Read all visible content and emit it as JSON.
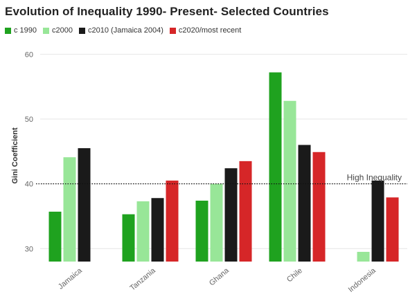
{
  "chart_data": {
    "type": "bar",
    "title": "Evolution of Inequality 1990- Present- Selected Countries",
    "ylabel": "Gini Coefficient",
    "xlabel": "",
    "categories": [
      "Jamaica",
      "Tanzania",
      "Ghana",
      "Chile",
      "Indonesia"
    ],
    "series": [
      {
        "name": "c 1990",
        "color": "#1fa21f",
        "values": [
          35.7,
          35.3,
          37.4,
          57.2,
          null
        ]
      },
      {
        "name": "c2000",
        "color": "#98e698",
        "values": [
          44.1,
          37.3,
          40.0,
          52.8,
          29.5
        ]
      },
      {
        "name": "c2010 (Jamaica 2004)",
        "color": "#1a1a1a",
        "values": [
          45.5,
          37.8,
          42.4,
          46.0,
          40.5
        ]
      },
      {
        "name": "c2020/most recent",
        "color": "#d62628",
        "values": [
          null,
          40.5,
          43.5,
          44.9,
          37.9
        ]
      }
    ],
    "ylim": [
      28,
      61
    ],
    "yticks": [
      30,
      40,
      50,
      60
    ],
    "grid": true,
    "legend_position": "top-left",
    "reference_line": {
      "value": 40,
      "label": "High Inequality",
      "style": "dotted"
    }
  }
}
